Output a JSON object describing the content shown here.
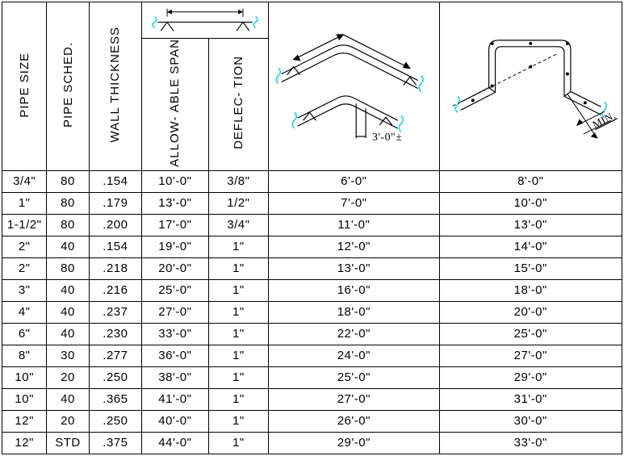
{
  "headers": {
    "pipe_size": "PIPE  SIZE",
    "pipe_sched": "PIPE  SCHED.",
    "wall_thickness": "WALL THICKNESS",
    "allowable_span": "ALLOW- ABLE SPAN",
    "deflection": "DEFLEC- TION",
    "bend_label": "3'-0\"±",
    "loop_label": "MIN."
  },
  "colors": {
    "background": "#ffffff",
    "line": "#000000",
    "accent": "#00d2ff"
  },
  "columns": [
    "pipe_size",
    "pipe_sched",
    "wall_thickness",
    "allowable_span",
    "deflection",
    "bend_span",
    "loop_span"
  ],
  "rows": [
    {
      "pipe_size": "3/4\"",
      "pipe_sched": "80",
      "wall_thickness": ".154",
      "allowable_span": "10'-0\"",
      "deflection": "3/8\"",
      "bend_span": "6'-0\"",
      "loop_span": "8'-0\""
    },
    {
      "pipe_size": "1\"",
      "pipe_sched": "80",
      "wall_thickness": ".179",
      "allowable_span": "13'-0\"",
      "deflection": "1/2\"",
      "bend_span": "7'-0\"",
      "loop_span": "10'-0\""
    },
    {
      "pipe_size": "1-1/2\"",
      "pipe_sched": "80",
      "wall_thickness": ".200",
      "allowable_span": "17'-0\"",
      "deflection": "3/4\"",
      "bend_span": "11'-0\"",
      "loop_span": "13'-0\""
    },
    {
      "pipe_size": "2\"",
      "pipe_sched": "40",
      "wall_thickness": ".154",
      "allowable_span": "19'-0\"",
      "deflection": "1\"",
      "bend_span": "12'-0\"",
      "loop_span": "14'-0\""
    },
    {
      "pipe_size": "2\"",
      "pipe_sched": "80",
      "wall_thickness": ".218",
      "allowable_span": "20'-0\"",
      "deflection": "1\"",
      "bend_span": "13'-0\"",
      "loop_span": "15'-0\""
    },
    {
      "pipe_size": "3\"",
      "pipe_sched": "40",
      "wall_thickness": ".216",
      "allowable_span": "25'-0\"",
      "deflection": "1\"",
      "bend_span": "16'-0\"",
      "loop_span": "18'-0\""
    },
    {
      "pipe_size": "4\"",
      "pipe_sched": "40",
      "wall_thickness": ".237",
      "allowable_span": "27'-0\"",
      "deflection": "1\"",
      "bend_span": "18'-0\"",
      "loop_span": "20'-0\""
    },
    {
      "pipe_size": "6\"",
      "pipe_sched": "40",
      "wall_thickness": ".230",
      "allowable_span": "33'-0\"",
      "deflection": "1\"",
      "bend_span": "22'-0\"",
      "loop_span": "25'-0\""
    },
    {
      "pipe_size": "8\"",
      "pipe_sched": "30",
      "wall_thickness": ".277",
      "allowable_span": "36'-0\"",
      "deflection": "1\"",
      "bend_span": "24'-0\"",
      "loop_span": "27'-0\""
    },
    {
      "pipe_size": "10\"",
      "pipe_sched": "20",
      "wall_thickness": ".250",
      "allowable_span": "38'-0\"",
      "deflection": "1\"",
      "bend_span": "25'-0\"",
      "loop_span": "29'-0\""
    },
    {
      "pipe_size": "10\"",
      "pipe_sched": "40",
      "wall_thickness": ".365",
      "allowable_span": "41'-0\"",
      "deflection": "1\"",
      "bend_span": "27'-0\"",
      "loop_span": "31'-0\""
    },
    {
      "pipe_size": "12\"",
      "pipe_sched": "20",
      "wall_thickness": ".250",
      "allowable_span": "40'-0\"",
      "deflection": "1\"",
      "bend_span": "26'-0\"",
      "loop_span": "30'-0\""
    },
    {
      "pipe_size": "12\"",
      "pipe_sched": "STD",
      "wall_thickness": ".375",
      "allowable_span": "44'-0\"",
      "deflection": "1\"",
      "bend_span": "29'-0\"",
      "loop_span": "33'-0\""
    }
  ]
}
